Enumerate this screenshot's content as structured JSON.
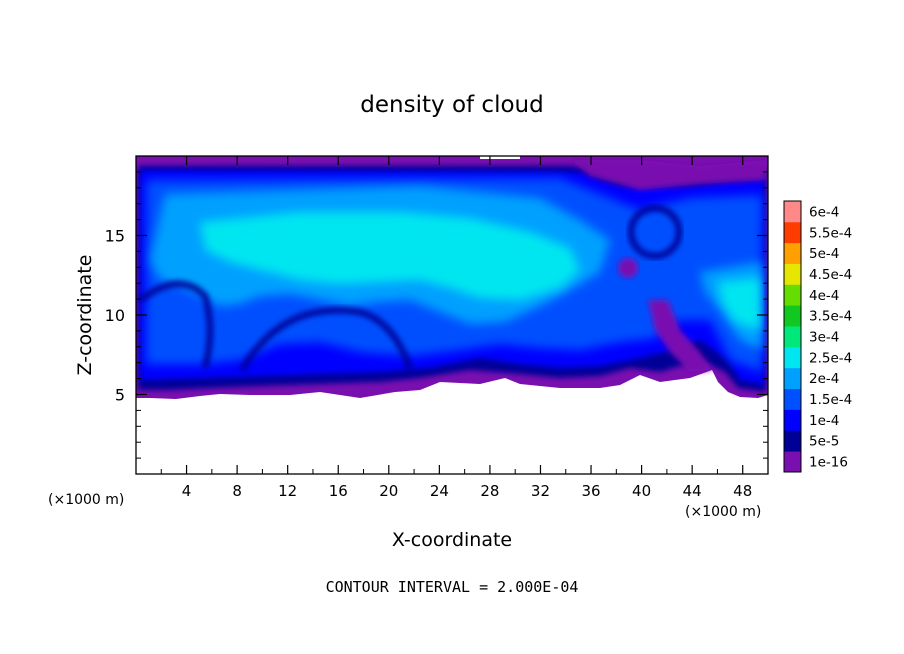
{
  "chart_data": {
    "type": "heatmap",
    "title": "density of cloud",
    "xlabel": "X-coordinate",
    "ylabel": "Z-coordinate",
    "x_unit": "(×1000 m)",
    "z_unit": "(×1000 m)",
    "xlim": [
      0,
      50
    ],
    "ylim": [
      0,
      20
    ],
    "x_ticks": [
      "4",
      "8",
      "12",
      "16",
      "20",
      "24",
      "28",
      "32",
      "36",
      "40",
      "44",
      "48"
    ],
    "y_ticks": [
      "5",
      "10",
      "15"
    ],
    "colorbar_labels": [
      "1e-16",
      "5e-5",
      "1e-4",
      "1.5e-4",
      "2e-4",
      "2.5e-4",
      "3e-4",
      "3.5e-4",
      "4e-4",
      "4.5e-4",
      "5e-4",
      "5.5e-4",
      "6e-4"
    ],
    "colorbar_colors": [
      "#7a0fb0",
      "#000096",
      "#0000ff",
      "#0050ff",
      "#00a0ff",
      "#00e6f0",
      "#00e87a",
      "#10c820",
      "#66dd00",
      "#e6e600",
      "#ffa000",
      "#ff3c00",
      "#ff8888"
    ],
    "cloud_base": 5,
    "cloud_top": 19.5,
    "footnote": "CONTOUR INTERVAL = 2.000E-04"
  }
}
